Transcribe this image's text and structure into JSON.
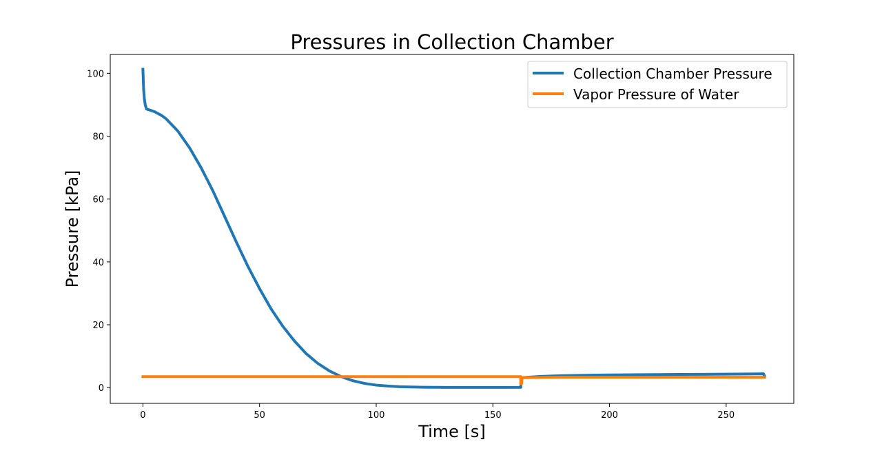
{
  "chart_data": {
    "type": "line",
    "title": "Pressures in Collection Chamber",
    "xlabel": "Time [s]",
    "ylabel": "Pressure [kPa]",
    "xlim": [
      -14,
      279
    ],
    "ylim": [
      -5,
      106
    ],
    "xticks": [
      0,
      50,
      100,
      150,
      200,
      250
    ],
    "yticks": [
      0,
      20,
      40,
      60,
      80,
      100
    ],
    "grid": false,
    "legend_position": "top-right",
    "series": [
      {
        "name": "Collection Chamber Pressure",
        "color": "#1f77b4",
        "x": [
          0,
          0.3,
          0.6,
          1,
          1.5,
          2,
          3,
          5,
          8,
          10,
          15,
          20,
          25,
          30,
          35,
          40,
          45,
          50,
          55,
          60,
          65,
          70,
          75,
          80,
          85,
          90,
          95,
          100,
          105,
          110,
          115,
          120,
          125,
          130,
          140,
          150,
          155,
          162,
          162,
          163,
          165,
          170,
          175,
          180,
          190,
          200,
          210,
          220,
          230,
          240,
          250,
          260,
          266,
          266.5
        ],
        "y": [
          101.3,
          95,
          92,
          90,
          88.7,
          88.5,
          88.3,
          87.8,
          86.6,
          85.5,
          81.6,
          76.3,
          69.9,
          62.6,
          54.5,
          46.4,
          38.6,
          31.5,
          25.0,
          19.5,
          14.8,
          10.8,
          7.7,
          5.3,
          3.5,
          2.2,
          1.35,
          0.8,
          0.5,
          0.3,
          0.2,
          0.12,
          0.1,
          0.08,
          0.07,
          0.07,
          0.07,
          0.1,
          3.0,
          3.2,
          3.3,
          3.55,
          3.7,
          3.8,
          3.95,
          4.05,
          4.1,
          4.15,
          4.2,
          4.25,
          4.3,
          4.35,
          4.4,
          3.6
        ]
      },
      {
        "name": "Vapor Pressure of Water",
        "color": "#ff7f0e",
        "x": [
          0,
          30,
          60,
          90,
          120,
          150,
          161.5,
          162,
          162,
          162.3,
          162.5,
          163,
          170,
          180,
          200,
          220,
          240,
          260,
          266.5
        ],
        "y": [
          3.5,
          3.5,
          3.5,
          3.5,
          3.5,
          3.5,
          3.5,
          3.5,
          1.2,
          1.2,
          3.1,
          3.15,
          3.25,
          3.3,
          3.3,
          3.3,
          3.3,
          3.3,
          3.3
        ]
      }
    ]
  }
}
